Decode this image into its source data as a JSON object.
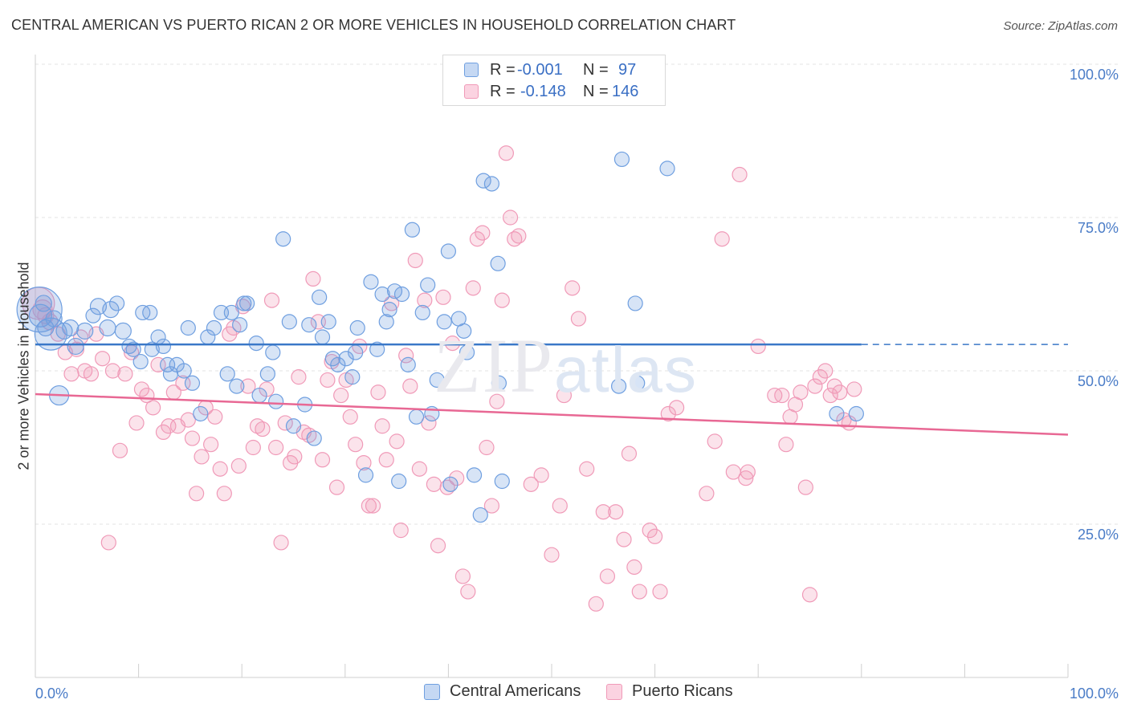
{
  "header": {
    "title": "CENTRAL AMERICAN VS PUERTO RICAN 2 OR MORE VEHICLES IN HOUSEHOLD CORRELATION CHART",
    "source": "Source: ZipAtlas.com"
  },
  "watermark": {
    "zip": "ZIP",
    "atlas": "atlas"
  },
  "legend": {
    "series": [
      {
        "r_label": "R =",
        "r_value": "-0.001",
        "n_label": "N =",
        "n_value": "97"
      },
      {
        "r_label": "R =",
        "r_value": "-0.148",
        "n_label": "N =",
        "n_value": "146"
      }
    ]
  },
  "bottom_legend": [
    "Central Americans",
    "Puerto Ricans"
  ],
  "chart_data": {
    "type": "scatter",
    "title": "CENTRAL AMERICAN VS PUERTO RICAN 2 OR MORE VEHICLES IN HOUSEHOLD CORRELATION CHART",
    "xlabel": "",
    "ylabel": "2 or more Vehicles in Household",
    "xlim": [
      0,
      100
    ],
    "ylim": [
      0,
      100
    ],
    "x_tick_labels": [
      "0.0%",
      "100.0%"
    ],
    "y_tick_labels": [
      "100.0%",
      "75.0%",
      "50.0%",
      "25.0%"
    ],
    "y_ticks": [
      100,
      75,
      50,
      25
    ],
    "grid": true,
    "legend_placement": "top-center",
    "colors": {
      "central": "#6f9fe0",
      "puerto": "#f09ab8",
      "central_line": "#3a78c8",
      "puerto_line": "#e86894",
      "axis_text": "#4a7cc7"
    },
    "series": [
      {
        "name": "Central Americans",
        "r": -0.001,
        "n": 97,
        "trend": {
          "x": [
            0,
            80
          ],
          "y": [
            54.3,
            54.3
          ],
          "dashed_to": 100
        },
        "points": [
          [
            0.4,
            60,
            28
          ],
          [
            0.5,
            59,
            14
          ],
          [
            0.8,
            61,
            10
          ],
          [
            1,
            57,
            10
          ],
          [
            1.5,
            56,
            20
          ],
          [
            1.8,
            58.5,
            10
          ],
          [
            2.3,
            46,
            12
          ],
          [
            2.8,
            56.5,
            10
          ],
          [
            3.4,
            57,
            10
          ],
          [
            3.9,
            54,
            10
          ],
          [
            4.8,
            56.5,
            10
          ],
          [
            5.6,
            59,
            9
          ],
          [
            6.1,
            60.5,
            10
          ],
          [
            7,
            57,
            10
          ],
          [
            7.3,
            60,
            10
          ],
          [
            7.9,
            61,
            9
          ],
          [
            8.5,
            56.5,
            10
          ],
          [
            9.1,
            54,
            9
          ],
          [
            9.5,
            53.5,
            9
          ],
          [
            10.2,
            51.5,
            9
          ],
          [
            10.4,
            59.5,
            9
          ],
          [
            11.1,
            59.5,
            9
          ],
          [
            11.3,
            53.5,
            9
          ],
          [
            11.9,
            55.5,
            9
          ],
          [
            12.4,
            54,
            9
          ],
          [
            12.8,
            51,
            9
          ],
          [
            13.1,
            49.5,
            9
          ],
          [
            13.7,
            51,
            9
          ],
          [
            14.4,
            50,
            9
          ],
          [
            14.8,
            57,
            9
          ],
          [
            15.2,
            48,
            9
          ],
          [
            16,
            43,
            9
          ],
          [
            16.7,
            55.5,
            9
          ],
          [
            17.3,
            57,
            9
          ],
          [
            18,
            59.5,
            9
          ],
          [
            18.6,
            49.5,
            9
          ],
          [
            19,
            59.5,
            9
          ],
          [
            19.5,
            47.5,
            9
          ],
          [
            19.8,
            57.5,
            9
          ],
          [
            20.2,
            61,
            9
          ],
          [
            20.5,
            61,
            9
          ],
          [
            21.4,
            54.5,
            9
          ],
          [
            21.7,
            46,
            9
          ],
          [
            22.5,
            49.5,
            9
          ],
          [
            23,
            53,
            9
          ],
          [
            23.3,
            45,
            9
          ],
          [
            24,
            71.5,
            9
          ],
          [
            24.6,
            58,
            9
          ],
          [
            25,
            41,
            9
          ],
          [
            26.1,
            44.5,
            9
          ],
          [
            26.5,
            57.5,
            9
          ],
          [
            27,
            39,
            9
          ],
          [
            27.5,
            62,
            9
          ],
          [
            27.8,
            55.5,
            9
          ],
          [
            28.4,
            58,
            9
          ],
          [
            28.8,
            52,
            9
          ],
          [
            29.3,
            51,
            9
          ],
          [
            30.1,
            52,
            9
          ],
          [
            30.7,
            49,
            9
          ],
          [
            31,
            53,
            9
          ],
          [
            31.2,
            57,
            9
          ],
          [
            32,
            33,
            9
          ],
          [
            32.5,
            64.5,
            9
          ],
          [
            33.1,
            53.5,
            9
          ],
          [
            33.6,
            62.5,
            9
          ],
          [
            34,
            58,
            9
          ],
          [
            34.3,
            60,
            9
          ],
          [
            34.8,
            63,
            9
          ],
          [
            35.2,
            32,
            9
          ],
          [
            35.5,
            62.5,
            9
          ],
          [
            36.1,
            51,
            9
          ],
          [
            36.5,
            73,
            9
          ],
          [
            36.9,
            42.5,
            9
          ],
          [
            37.5,
            59.5,
            9
          ],
          [
            38,
            64,
            9
          ],
          [
            38.4,
            43,
            9
          ],
          [
            38.9,
            48.5,
            9
          ],
          [
            39.6,
            58,
            9
          ],
          [
            40,
            69.5,
            9
          ],
          [
            40.2,
            31.5,
            9
          ],
          [
            41,
            58.5,
            9
          ],
          [
            41.5,
            56.5,
            9
          ],
          [
            41.8,
            53,
            9
          ],
          [
            42.5,
            33,
            9
          ],
          [
            43.1,
            26.5,
            9
          ],
          [
            43.4,
            81,
            9
          ],
          [
            44.2,
            80.5,
            9
          ],
          [
            44.8,
            67.5,
            9
          ],
          [
            44.9,
            48,
            9
          ],
          [
            45.2,
            32,
            9
          ],
          [
            56.5,
            47.5,
            9
          ],
          [
            56.8,
            84.5,
            9
          ],
          [
            58.1,
            61,
            9
          ],
          [
            58.3,
            48,
            9
          ],
          [
            61.2,
            83,
            9
          ],
          [
            77.6,
            43,
            9
          ],
          [
            79.5,
            43,
            9
          ]
        ]
      },
      {
        "name": "Puerto Ricans",
        "r": -0.148,
        "n": 146,
        "trend": {
          "x": [
            0,
            100
          ],
          "y": [
            46.2,
            39.6
          ]
        },
        "points": [
          [
            0.3,
            61,
            20
          ],
          [
            0.7,
            60,
            12
          ],
          [
            1,
            59,
            10
          ],
          [
            1.4,
            58,
            10
          ],
          [
            2.2,
            56,
            9
          ],
          [
            2.9,
            53,
            9
          ],
          [
            3.5,
            49.5,
            9
          ],
          [
            4,
            53.5,
            9
          ],
          [
            4.4,
            55.5,
            9
          ],
          [
            4.8,
            50,
            9
          ],
          [
            5.4,
            49.5,
            9
          ],
          [
            5.9,
            56,
            9
          ],
          [
            6.5,
            52,
            9
          ],
          [
            7.1,
            22,
            9
          ],
          [
            7.5,
            50,
            9
          ],
          [
            8.2,
            37,
            9
          ],
          [
            8.7,
            49.5,
            9
          ],
          [
            9.3,
            53,
            9
          ],
          [
            9.8,
            41.5,
            9
          ],
          [
            10.3,
            47,
            9
          ],
          [
            10.8,
            46,
            9
          ],
          [
            11.4,
            44,
            9
          ],
          [
            11.9,
            51,
            9
          ],
          [
            12.4,
            40,
            9
          ],
          [
            12.9,
            41,
            9
          ],
          [
            13.4,
            46.5,
            9
          ],
          [
            13.8,
            41,
            9
          ],
          [
            14.3,
            48,
            9
          ],
          [
            14.8,
            42,
            9
          ],
          [
            15.2,
            39,
            9
          ],
          [
            15.6,
            30,
            9
          ],
          [
            16.1,
            36,
            9
          ],
          [
            16.5,
            44,
            9
          ],
          [
            17,
            38,
            9
          ],
          [
            17.4,
            42.5,
            9
          ],
          [
            17.9,
            34,
            9
          ],
          [
            18.3,
            30,
            9
          ],
          [
            18.8,
            56,
            9
          ],
          [
            19.2,
            57,
            9
          ],
          [
            19.7,
            34.5,
            9
          ],
          [
            20.1,
            60.5,
            9
          ],
          [
            20.6,
            47.5,
            9
          ],
          [
            21.1,
            37.5,
            9
          ],
          [
            21.5,
            41,
            9
          ],
          [
            22,
            40.5,
            9
          ],
          [
            22.4,
            47,
            9
          ],
          [
            22.9,
            61.5,
            9
          ],
          [
            23.3,
            37.5,
            9
          ],
          [
            23.8,
            22,
            9
          ],
          [
            24.2,
            41.5,
            9
          ],
          [
            24.7,
            35,
            9
          ],
          [
            25.1,
            36,
            9
          ],
          [
            25.5,
            49,
            9
          ],
          [
            26,
            40,
            9
          ],
          [
            26.5,
            39.5,
            9
          ],
          [
            26.9,
            65,
            9
          ],
          [
            27.4,
            58,
            9
          ],
          [
            27.8,
            35.5,
            9
          ],
          [
            28.3,
            48.5,
            9
          ],
          [
            28.7,
            51.5,
            9
          ],
          [
            29.2,
            31,
            9
          ],
          [
            29.6,
            46,
            9
          ],
          [
            30.1,
            48.5,
            9
          ],
          [
            30.5,
            42.5,
            9
          ],
          [
            31,
            38,
            9
          ],
          [
            31.4,
            54,
            9
          ],
          [
            31.8,
            35,
            9
          ],
          [
            32.3,
            28,
            9
          ],
          [
            32.7,
            28,
            9
          ],
          [
            33.2,
            46.5,
            9
          ],
          [
            33.6,
            41,
            9
          ],
          [
            34,
            35.5,
            9
          ],
          [
            34.5,
            61,
            9
          ],
          [
            35,
            38.5,
            9
          ],
          [
            35.4,
            24,
            9
          ],
          [
            35.9,
            52.5,
            9
          ],
          [
            36.3,
            47.5,
            9
          ],
          [
            36.8,
            68,
            9
          ],
          [
            37.2,
            34,
            9
          ],
          [
            37.7,
            61.5,
            9
          ],
          [
            38.1,
            41.5,
            9
          ],
          [
            38.6,
            31.5,
            9
          ],
          [
            39,
            21.5,
            9
          ],
          [
            39.5,
            62,
            9
          ],
          [
            39.9,
            31,
            9
          ],
          [
            40.4,
            54.5,
            9
          ],
          [
            40.8,
            32.5,
            9
          ],
          [
            41.4,
            16.5,
            9
          ],
          [
            41.9,
            14,
            9
          ],
          [
            42.4,
            63.5,
            9
          ],
          [
            42.8,
            71.5,
            9
          ],
          [
            43.3,
            72.5,
            9
          ],
          [
            43.7,
            37.5,
            9
          ],
          [
            44.2,
            28,
            9
          ],
          [
            44.7,
            45,
            9
          ],
          [
            45.2,
            61.5,
            9
          ],
          [
            45.6,
            85.5,
            9
          ],
          [
            46,
            75,
            9
          ],
          [
            46.4,
            71.5,
            9
          ],
          [
            46.8,
            72,
            9
          ],
          [
            48,
            31.5,
            9
          ],
          [
            49,
            33,
            9
          ],
          [
            50,
            20,
            9
          ],
          [
            50.8,
            28,
            9
          ],
          [
            51.2,
            46,
            9
          ],
          [
            52,
            63.5,
            9
          ],
          [
            52.6,
            58.5,
            9
          ],
          [
            53.4,
            34,
            9
          ],
          [
            54.3,
            12,
            9
          ],
          [
            55,
            27,
            9
          ],
          [
            55.4,
            16.5,
            9
          ],
          [
            56.2,
            27,
            9
          ],
          [
            57,
            22.5,
            9
          ],
          [
            57.5,
            36.5,
            9
          ],
          [
            58,
            18,
            9
          ],
          [
            58.5,
            14,
            9
          ],
          [
            59.5,
            24,
            9
          ],
          [
            60,
            23,
            9
          ],
          [
            60.5,
            14,
            9
          ],
          [
            61.3,
            43,
            9
          ],
          [
            62.1,
            44,
            9
          ],
          [
            65,
            30,
            9
          ],
          [
            65.8,
            38.5,
            9
          ],
          [
            66.5,
            71.5,
            9
          ],
          [
            67.6,
            33.5,
            9
          ],
          [
            68.2,
            82,
            9
          ],
          [
            68.8,
            32.5,
            9
          ],
          [
            69,
            33.5,
            9
          ],
          [
            70,
            54,
            9
          ],
          [
            71.6,
            46,
            9
          ],
          [
            72.3,
            46,
            9
          ],
          [
            72.7,
            38,
            9
          ],
          [
            73.1,
            42.5,
            9
          ],
          [
            73.6,
            44.5,
            9
          ],
          [
            74.1,
            46.5,
            9
          ],
          [
            74.6,
            31,
            9
          ],
          [
            75,
            13.5,
            9
          ],
          [
            75.5,
            47.5,
            9
          ],
          [
            76,
            49,
            9
          ],
          [
            76.5,
            50,
            9
          ],
          [
            77,
            46,
            9
          ],
          [
            77.4,
            47.5,
            9
          ],
          [
            77.9,
            46.5,
            9
          ],
          [
            78.3,
            42,
            9
          ],
          [
            78.8,
            41.5,
            9
          ],
          [
            79.3,
            47,
            9
          ]
        ]
      }
    ]
  }
}
